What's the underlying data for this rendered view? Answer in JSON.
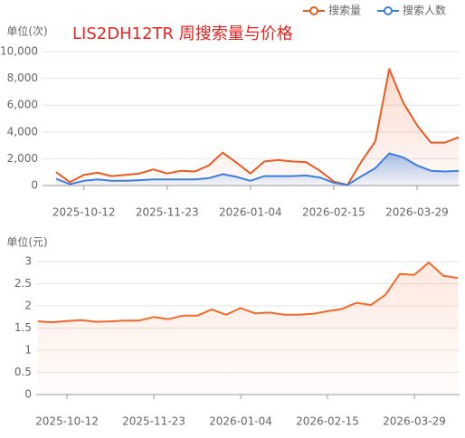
{
  "chart_data": [
    {
      "type": "line",
      "title": "LIS2DH12TR 周搜索量与价格",
      "y_label": "单位(次)",
      "legend": "top-right",
      "categories": [
        null,
        null,
        "2025-10-12",
        null,
        null,
        null,
        null,
        null,
        "2025-11-23",
        null,
        null,
        null,
        null,
        null,
        "2026-01-04",
        null,
        null,
        null,
        null,
        null,
        "2026-02-15",
        null,
        null,
        null,
        null,
        null,
        "2026-03-29",
        null,
        null,
        null
      ],
      "series": [
        {
          "name": "搜索量",
          "color": "#ec5a1f",
          "values": [
            1000,
            250,
            800,
            950,
            700,
            800,
            900,
            1200,
            900,
            1100,
            1050,
            1500,
            2450,
            1700,
            900,
            1800,
            1900,
            1800,
            1750,
            1100,
            300,
            50,
            1800,
            3300,
            8700,
            6200,
            4500,
            3200,
            3200,
            3600
          ]
        },
        {
          "name": "搜索人数",
          "color": "#3d7ee0",
          "values": [
            500,
            100,
            350,
            450,
            350,
            350,
            400,
            450,
            450,
            450,
            450,
            550,
            850,
            650,
            350,
            700,
            700,
            700,
            750,
            600,
            200,
            50,
            700,
            1300,
            2400,
            2100,
            1500,
            1100,
            1050,
            1100
          ]
        }
      ],
      "ylim": [
        0,
        10000
      ],
      "yticks": [
        0,
        {
          "value": 2000,
          "label": "2,000"
        },
        {
          "value": 4000,
          "label": "4,000"
        },
        {
          "value": 6000,
          "label": "6,000"
        },
        {
          "value": 8000,
          "label": "8,000"
        },
        {
          "value": 10000,
          "label": "10,000"
        }
      ],
      "grid": true
    },
    {
      "type": "line",
      "y_label": "单位(元)",
      "categories": [
        null,
        null,
        "2025-10-12",
        null,
        null,
        null,
        null,
        null,
        "2025-11-23",
        null,
        null,
        null,
        null,
        null,
        "2026-01-04",
        null,
        null,
        null,
        null,
        null,
        "2026-02-15",
        null,
        null,
        null,
        null,
        null,
        "2026-03-29",
        null,
        null,
        null
      ],
      "series": [
        {
          "color": "#f26a2b",
          "values": [
            1.65,
            1.63,
            1.66,
            1.68,
            1.64,
            1.65,
            1.67,
            1.67,
            1.75,
            1.7,
            1.78,
            1.78,
            1.92,
            1.8,
            1.95,
            1.83,
            1.85,
            1.8,
            1.8,
            1.82,
            1.88,
            1.93,
            2.07,
            2.02,
            2.25,
            2.72,
            2.7,
            2.98,
            2.68,
            2.63
          ]
        }
      ],
      "ylim": [
        0,
        3
      ],
      "yticks": [
        0,
        0.5,
        1,
        1.5,
        2,
        2.5,
        3
      ],
      "grid": true
    }
  ]
}
